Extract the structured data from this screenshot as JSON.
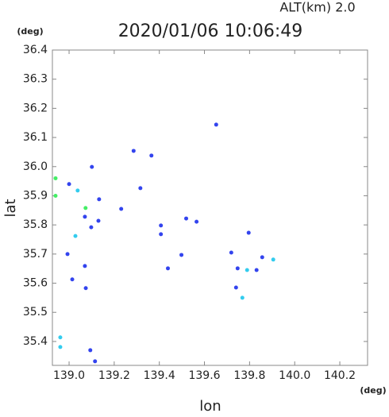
{
  "chart_data": {
    "type": "scatter",
    "title": "2020/01/06  10:06:49",
    "subtitle": "ALT(km)  2.0",
    "x_label": "lon",
    "y_label": "lat",
    "x_unit": "(deg)",
    "y_unit": "(deg)",
    "xlim": [
      138.926,
      140.323
    ],
    "ylim": [
      35.318,
      36.4
    ],
    "xticks": [
      {
        "value": 139,
        "label": "139.0"
      },
      139.2,
      139.4,
      139.6,
      139.8,
      {
        "value": 140,
        "label": "140.0"
      },
      140.2
    ],
    "yticks": [
      {
        "value": 35.4,
        "label": "35.4"
      },
      35.5,
      35.6,
      35.7,
      35.8,
      35.9,
      {
        "value": 36,
        "label": "36.0"
      },
      36.1,
      36.2,
      36.3,
      36.4
    ],
    "series": [
      {
        "color": "#3344ee",
        "x": [
          139.652,
          139.365,
          139.101,
          139.0,
          139.133,
          139.07,
          139.098,
          139.07,
          139.074,
          139.014,
          139.231,
          139.316,
          139.407,
          139.407,
          139.498,
          139.438,
          139.565,
          139.719,
          139.747,
          139.831,
          139.856,
          139.74,
          139.796,
          139.094,
          139.115,
          139.13,
          138.993,
          139.286,
          139.519
        ],
        "y": [
          36.144,
          36.038,
          35.999,
          35.94,
          35.888,
          35.828,
          35.792,
          35.659,
          35.583,
          35.613,
          35.855,
          35.926,
          35.798,
          35.768,
          35.697,
          35.651,
          35.811,
          35.705,
          35.651,
          35.645,
          35.689,
          35.585,
          35.773,
          35.37,
          35.332,
          35.814,
          35.7,
          36.054,
          35.822
        ]
      },
      {
        "color": "#33ccee",
        "x": [
          139.038,
          139.028,
          139.789,
          139.905,
          139.768,
          138.961,
          138.961
        ],
        "y": [
          35.918,
          35.762,
          35.645,
          35.681,
          35.55,
          35.414,
          35.381
        ]
      },
      {
        "color": "#44ee66",
        "x": [
          138.94,
          138.94,
          139.073
        ],
        "y": [
          35.96,
          35.9,
          35.858
        ]
      }
    ]
  }
}
